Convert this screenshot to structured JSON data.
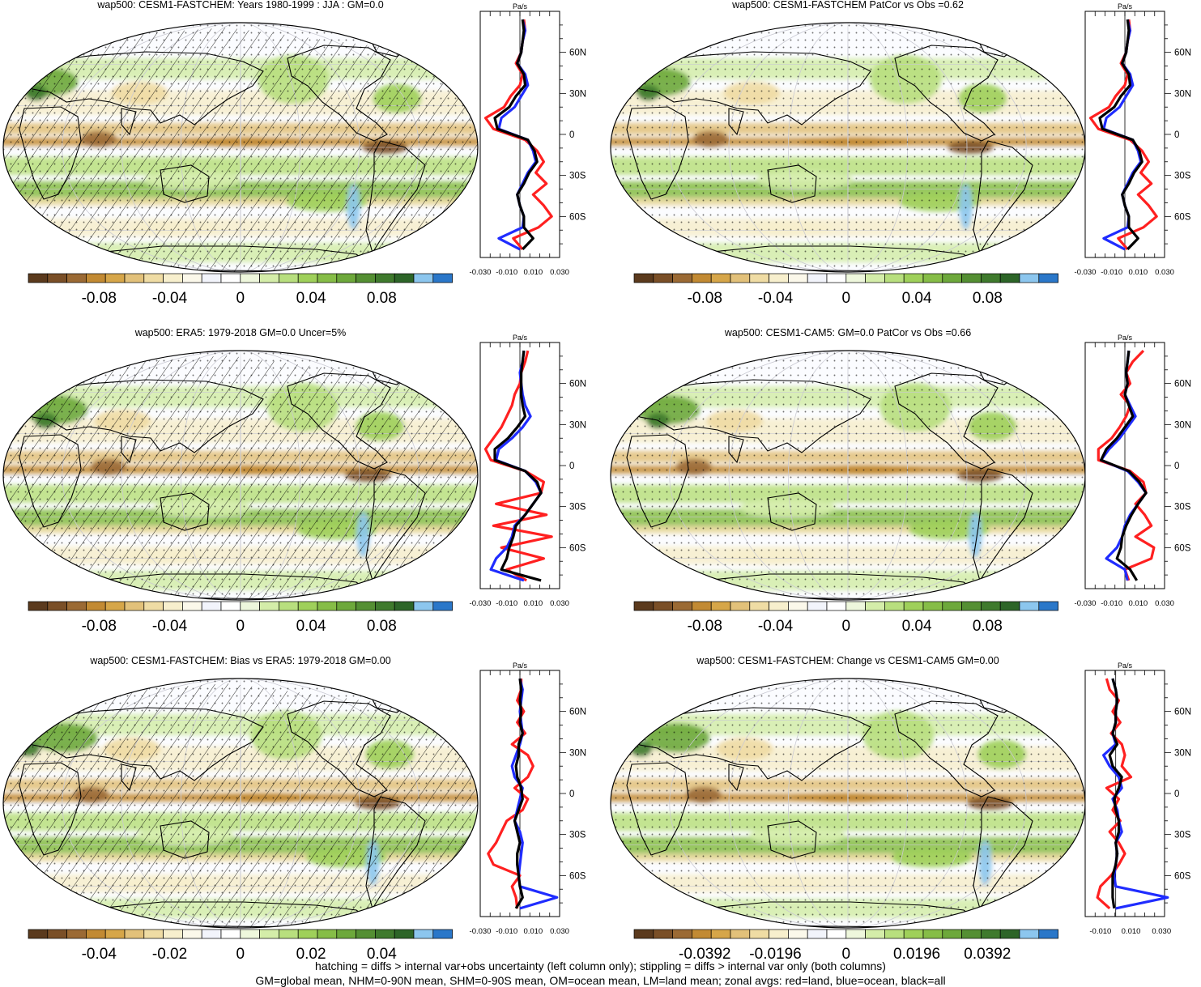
{
  "palette": [
    "#5b3a1d",
    "#7a4f27",
    "#9b6a34",
    "#c28a33",
    "#d6a649",
    "#e2c17a",
    "#efdca4",
    "#f7efcd",
    "#fbf8ea",
    "#f2f4fb",
    "#ffffff",
    "#eef7dc",
    "#d4eda9",
    "#b8df7e",
    "#9fd05a",
    "#86bd47",
    "#6da83b",
    "#548f33",
    "#3f7a2d",
    "#2d6528",
    "#8cc6ee",
    "#2a77c9"
  ],
  "chart_data": [
    {
      "type": "heatmap",
      "title": "wap500: CESM1-FASTCHEM: Years 1980-1999 : JJA : GM=0.0",
      "colorbar_ticks": [
        "-0.08",
        "-0.04",
        "0",
        "0.04",
        "0.08"
      ],
      "colorbar_range": [
        -0.11,
        0.11
      ],
      "hatching": true,
      "stippling": true,
      "zonal_profile": {
        "unit": "Pa/s",
        "x_ticks": [
          "-0.030",
          "-0.010",
          "0.010",
          "0.030"
        ],
        "xlim": [
          -0.03,
          0.03
        ],
        "y_ticks": [
          "60N",
          "30N",
          "0",
          "30S",
          "60S"
        ],
        "ylim": [
          -90,
          90
        ],
        "lat": [
          84,
          76,
          68,
          60,
          52,
          44,
          36,
          28,
          20,
          12,
          4,
          -4,
          -12,
          -20,
          -28,
          -36,
          -44,
          -52,
          -60,
          -68,
          -76,
          -84
        ],
        "land": [
          0.003,
          0.004,
          0.002,
          0.001,
          -0.003,
          0.002,
          0.0,
          -0.007,
          -0.012,
          -0.026,
          -0.02,
          0.004,
          0.013,
          0.018,
          0.012,
          0.02,
          0.01,
          0.018,
          0.024,
          0.014,
          -0.005,
          0.002
        ],
        "ocean": [
          0.002,
          0.004,
          0.002,
          0.001,
          -0.002,
          0.004,
          0.006,
          0.001,
          -0.004,
          -0.014,
          -0.016,
          0.006,
          0.01,
          0.012,
          0.006,
          0.002,
          -0.002,
          0.0,
          0.003,
          0.002,
          -0.016,
          0.0
        ],
        "all": [
          0.002,
          0.003,
          0.002,
          0.001,
          -0.002,
          0.003,
          0.004,
          -0.003,
          -0.008,
          -0.019,
          -0.017,
          0.006,
          0.011,
          0.013,
          0.007,
          0.003,
          -0.002,
          0.0,
          0.003,
          0.003,
          0.01,
          0.002
        ]
      }
    },
    {
      "type": "heatmap",
      "title": "wap500: CESM1-FASTCHEM PatCor vs Obs =0.62",
      "colorbar_ticks": [
        "-0.08",
        "-0.04",
        "0",
        "0.04",
        "0.08"
      ],
      "colorbar_range": [
        -0.11,
        0.11
      ],
      "hatching": false,
      "stippling": true,
      "zonal_profile": {
        "unit": "Pa/s",
        "x_ticks": [
          "-0.030",
          "-0.010",
          "0.010",
          "0.030"
        ],
        "xlim": [
          -0.03,
          0.03
        ],
        "y_ticks": [
          "60N",
          "30N",
          "0",
          "30S",
          "60S"
        ],
        "ylim": [
          -90,
          90
        ],
        "lat": [
          84,
          76,
          68,
          60,
          52,
          44,
          36,
          28,
          20,
          12,
          4,
          -4,
          -12,
          -20,
          -28,
          -36,
          -44,
          -52,
          -60,
          -68,
          -76,
          -84
        ],
        "land": [
          0.003,
          0.004,
          0.002,
          0.001,
          -0.003,
          0.002,
          0.0,
          -0.007,
          -0.012,
          -0.026,
          -0.02,
          0.004,
          0.013,
          0.018,
          0.012,
          0.02,
          0.01,
          0.018,
          0.024,
          0.014,
          -0.005,
          0.002
        ],
        "ocean": [
          0.002,
          0.004,
          0.002,
          0.001,
          -0.002,
          0.004,
          0.006,
          0.001,
          -0.004,
          -0.014,
          -0.016,
          0.006,
          0.01,
          0.012,
          0.006,
          0.002,
          -0.002,
          0.0,
          0.003,
          0.002,
          -0.016,
          0.0
        ],
        "all": [
          0.002,
          0.003,
          0.002,
          0.001,
          -0.002,
          0.003,
          0.004,
          -0.003,
          -0.008,
          -0.019,
          -0.017,
          0.006,
          0.011,
          0.013,
          0.007,
          0.003,
          -0.002,
          0.0,
          0.003,
          0.003,
          0.01,
          0.002
        ]
      }
    },
    {
      "type": "heatmap",
      "title": "wap500: ERA5: 1979-2018 GM=0.0 Uncer=5%",
      "colorbar_ticks": [
        "-0.08",
        "-0.04",
        "0",
        "0.04",
        "0.08"
      ],
      "colorbar_range": [
        -0.11,
        0.11
      ],
      "hatching": true,
      "stippling": true,
      "zonal_profile": {
        "unit": "Pa/s",
        "x_ticks": [
          "-0.030",
          "-0.010",
          "0.010",
          "0.030"
        ],
        "xlim": [
          -0.03,
          0.03
        ],
        "y_ticks": [
          "60N",
          "30N",
          "0",
          "30S",
          "60S"
        ],
        "ylim": [
          -90,
          90
        ],
        "lat": [
          84,
          76,
          68,
          60,
          52,
          44,
          36,
          28,
          20,
          12,
          4,
          -4,
          -12,
          -20,
          -28,
          -36,
          -44,
          -52,
          -60,
          -68,
          -76,
          -84
        ],
        "land": [
          0.006,
          0.004,
          0.001,
          0.0,
          -0.004,
          -0.006,
          -0.01,
          -0.014,
          -0.02,
          -0.026,
          -0.022,
          0.004,
          0.018,
          0.016,
          -0.018,
          0.02,
          -0.02,
          0.024,
          -0.014,
          0.018,
          -0.01,
          0.005
        ],
        "ocean": [
          0.003,
          0.002,
          0.0,
          0.001,
          0.002,
          0.004,
          0.008,
          0.002,
          -0.006,
          -0.016,
          -0.018,
          0.004,
          0.012,
          0.016,
          0.01,
          0.004,
          -0.004,
          -0.006,
          -0.01,
          -0.018,
          -0.022,
          0.003
        ],
        "all": [
          0.003,
          0.002,
          0.001,
          0.001,
          0.001,
          0.002,
          0.004,
          -0.002,
          -0.009,
          -0.019,
          -0.019,
          0.004,
          0.013,
          0.016,
          0.01,
          0.004,
          -0.003,
          -0.005,
          -0.008,
          -0.01,
          -0.014,
          0.016
        ]
      }
    },
    {
      "type": "heatmap",
      "title": "wap500: CESM1-CAM5: GM=0.0 PatCor vs Obs =0.66",
      "colorbar_ticks": [
        "-0.08",
        "-0.04",
        "0",
        "0.04",
        "0.08"
      ],
      "colorbar_range": [
        -0.11,
        0.11
      ],
      "hatching": false,
      "stippling": true,
      "zonal_profile": {
        "unit": "Pa/s",
        "x_ticks": [
          "-0.030",
          "-0.010",
          "0.010",
          "0.030"
        ],
        "xlim": [
          -0.03,
          0.03
        ],
        "y_ticks": [
          "60N",
          "30N",
          "0",
          "30S",
          "60S"
        ],
        "ylim": [
          -90,
          90
        ],
        "lat": [
          84,
          76,
          68,
          60,
          52,
          44,
          36,
          28,
          20,
          12,
          4,
          -4,
          -12,
          -20,
          -28,
          -36,
          -44,
          -52,
          -60,
          -68,
          -76,
          -84
        ],
        "land": [
          0.014,
          0.006,
          0.001,
          0.004,
          -0.003,
          0.004,
          0.001,
          -0.004,
          -0.01,
          -0.02,
          -0.02,
          0.004,
          0.014,
          0.016,
          0.008,
          0.015,
          0.02,
          0.008,
          0.022,
          0.02,
          0.0,
          0.003
        ],
        "ocean": [
          0.003,
          0.002,
          0.001,
          0.002,
          0.0,
          0.004,
          0.008,
          0.002,
          -0.004,
          -0.012,
          -0.018,
          0.002,
          0.01,
          0.016,
          0.01,
          0.004,
          0.0,
          -0.002,
          -0.006,
          -0.014,
          0.0,
          0.002
        ],
        "all": [
          0.003,
          0.002,
          0.001,
          0.002,
          0.0,
          0.003,
          0.006,
          0.0,
          -0.006,
          -0.014,
          -0.018,
          0.003,
          0.011,
          0.016,
          0.01,
          0.005,
          0.001,
          -0.002,
          -0.003,
          -0.006,
          0.004,
          0.009
        ]
      }
    },
    {
      "type": "heatmap",
      "title": "wap500: CESM1-FASTCHEM: Bias vs ERA5: 1979-2018 GM=0.00",
      "colorbar_ticks": [
        "-0.04",
        "-0.02",
        "0",
        "0.02",
        "0.04"
      ],
      "colorbar_range": [
        -0.055,
        0.055
      ],
      "hatching": true,
      "stippling": true,
      "zonal_profile": {
        "unit": "Pa/s",
        "x_ticks": [
          "-0.030",
          "-0.010",
          "0.010",
          "0.030"
        ],
        "xlim": [
          -0.03,
          0.03
        ],
        "y_ticks": [
          "60N",
          "30N",
          "0",
          "30S",
          "60S"
        ],
        "ylim": [
          -90,
          90
        ],
        "lat": [
          84,
          76,
          68,
          60,
          52,
          44,
          36,
          28,
          20,
          12,
          4,
          -4,
          -12,
          -20,
          -28,
          -36,
          -44,
          -52,
          -60,
          -68,
          -76,
          -84
        ],
        "land": [
          0.001,
          0.001,
          -0.002,
          0.003,
          -0.002,
          0.004,
          -0.006,
          0.006,
          0.01,
          0.006,
          -0.004,
          0.006,
          0.002,
          -0.01,
          -0.014,
          -0.018,
          -0.024,
          -0.02,
          0.0,
          -0.006,
          -0.003,
          -0.002
        ],
        "ocean": [
          0.0,
          0.002,
          0.001,
          0.0,
          0.001,
          0.002,
          0.0,
          -0.003,
          -0.006,
          -0.004,
          0.002,
          0.0,
          -0.002,
          -0.004,
          0.0,
          0.002,
          0.001,
          0.0,
          -0.001,
          0.0,
          0.028,
          0.0
        ],
        "all": [
          0.0,
          0.001,
          0.0,
          0.001,
          0.0,
          0.002,
          -0.001,
          -0.001,
          -0.003,
          -0.002,
          0.001,
          0.002,
          -0.001,
          -0.004,
          -0.002,
          0.0,
          -0.002,
          -0.002,
          -0.001,
          0.0,
          0.002,
          -0.003
        ]
      }
    },
    {
      "type": "heatmap",
      "title": "wap500: CESM1-FASTCHEM: Change vs CESM1-CAM5 GM=0.00",
      "colorbar_ticks": [
        "-0.0392",
        "-0.0196",
        "0",
        "0.0196",
        "0.0392"
      ],
      "colorbar_range": [
        -0.054,
        0.054
      ],
      "hatching": false,
      "stippling": true,
      "zonal_profile": {
        "unit": "Pa/s",
        "x_ticks": [
          "-0.010",
          "0.010",
          "0.030"
        ],
        "xlim": [
          -0.02,
          0.032
        ],
        "y_ticks": [
          "60N",
          "30N",
          "0",
          "30S",
          "60S"
        ],
        "ylim": [
          -90,
          90
        ],
        "lat": [
          84,
          76,
          68,
          60,
          52,
          44,
          36,
          28,
          20,
          12,
          4,
          -4,
          -12,
          -20,
          -28,
          -36,
          -44,
          -52,
          -60,
          -68,
          -76,
          -84
        ],
        "land": [
          -0.006,
          -0.004,
          0.002,
          -0.002,
          0.003,
          -0.003,
          0.004,
          0.006,
          0.004,
          0.01,
          -0.006,
          0.002,
          -0.002,
          0.003,
          -0.004,
          0.002,
          0.006,
          0.002,
          -0.003,
          -0.01,
          -0.012,
          -0.004
        ],
        "ocean": [
          -0.002,
          0.0,
          0.001,
          0.0,
          0.0,
          -0.002,
          0.0,
          -0.008,
          -0.004,
          0.002,
          0.004,
          -0.002,
          0.001,
          0.002,
          0.004,
          0.0,
          0.001,
          0.0,
          -0.001,
          0.0,
          0.034,
          0.0
        ],
        "all": [
          -0.002,
          0.0,
          0.001,
          0.0,
          0.0,
          -0.002,
          0.001,
          -0.004,
          -0.002,
          0.004,
          0.002,
          -0.001,
          0.0,
          0.002,
          0.002,
          0.0,
          0.001,
          0.0,
          -0.002,
          -0.002,
          -0.002,
          -0.001
        ]
      }
    }
  ],
  "footer": {
    "line1": "hatching = diffs > internal var+obs uncertainty (left column only); stippling = diffs > internal var only (both columns)",
    "line2": "GM=global mean, NHM=0-90N mean, SHM=0-90S mean, OM=ocean mean, LM=land mean; zonal avgs: red=land, blue=ocean, black=all"
  }
}
